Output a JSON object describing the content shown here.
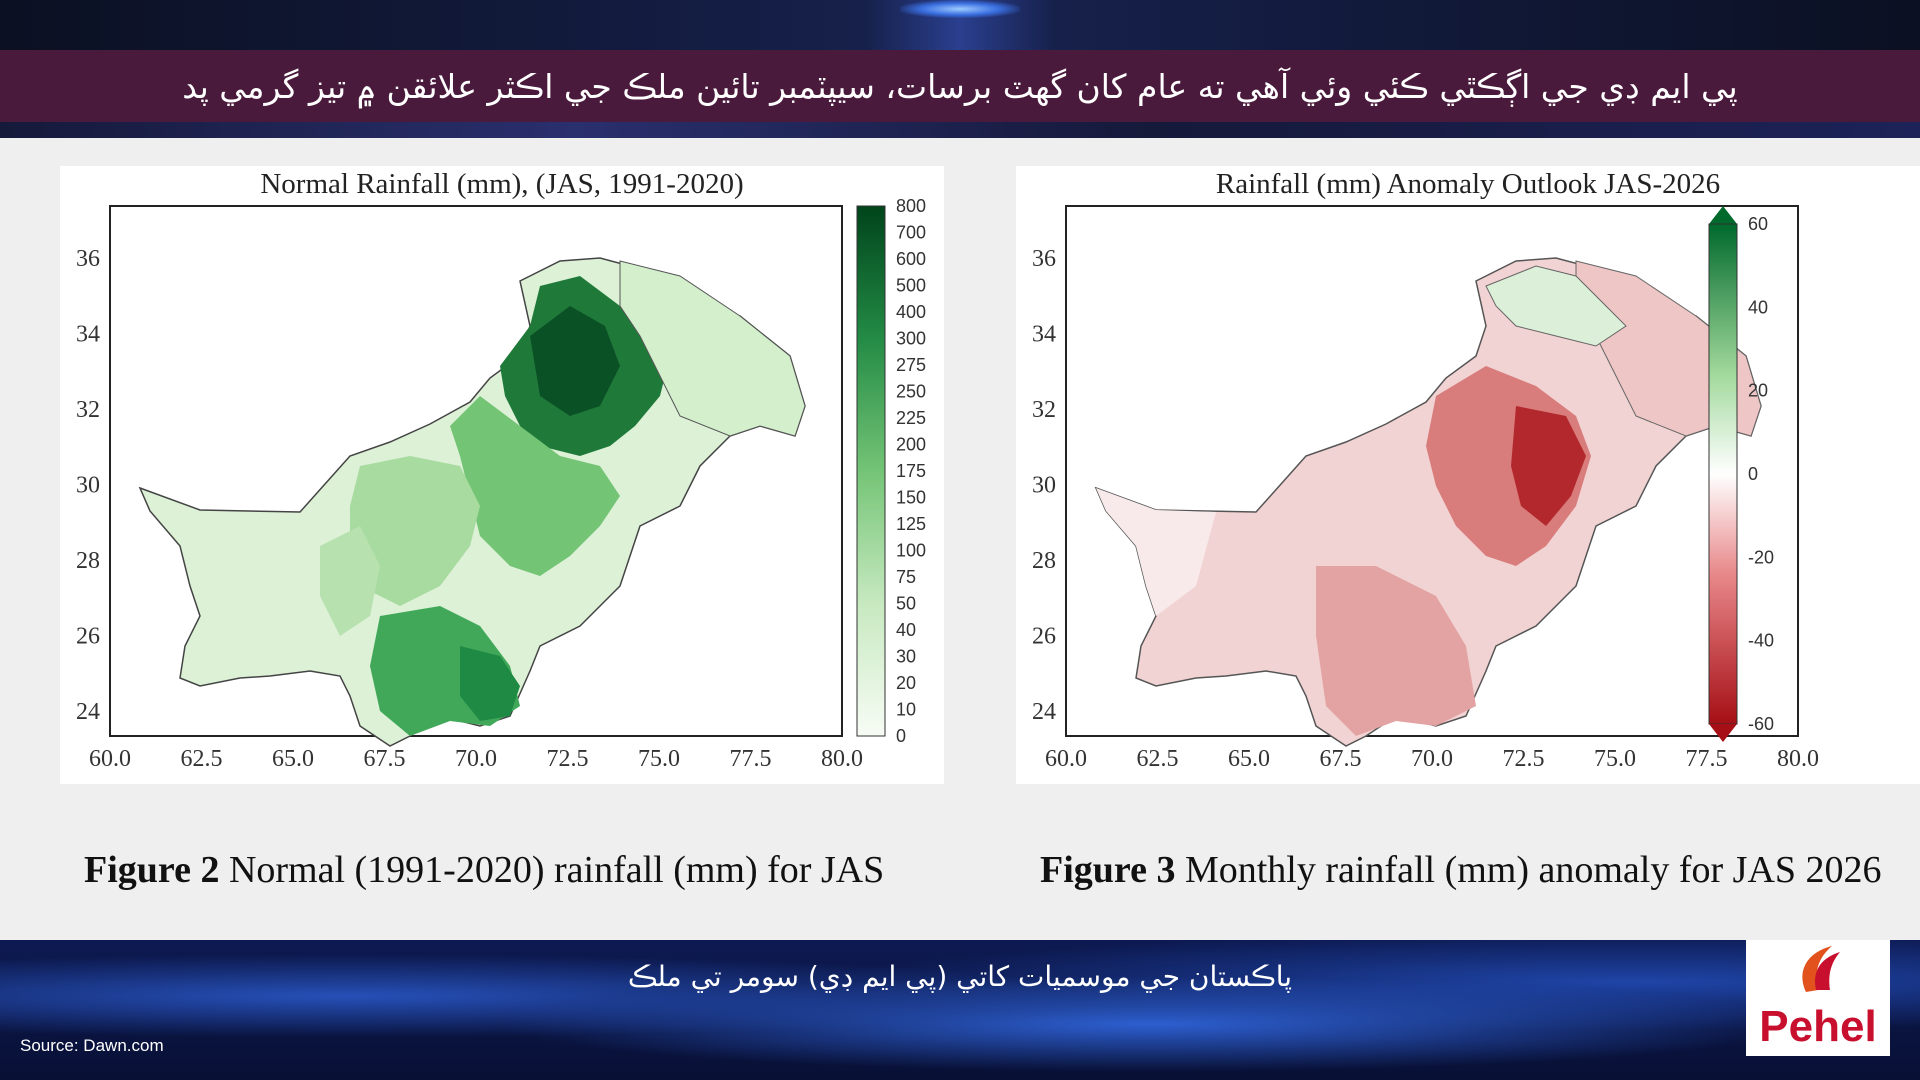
{
  "headline": "پي ايم ڊي جي اڳڪٿي ڪئي وئي آهي ته عام کان گهٽ برسات، سيپٽمبر تائين ملڪ جي اڪثر علائقن ۾ تيز گرمي پد",
  "subtitle": "پاڪستان جي موسميات کاتي (پي ايم ڊي) سومر تي ملڪ",
  "source": "Source: Dawn.com",
  "logo_text": "Pehel",
  "captions": {
    "left_bold": "Figure 2",
    "left_text": " Normal (1991-2020) rainfall (mm) for JAS",
    "right_bold": "Figure 3",
    "right_text": " Monthly rainfall (mm) anomaly for JAS 2026"
  },
  "colors": {
    "headline_bar": "#4a1a3c",
    "green_dark": "#00692c",
    "red_dark": "#a50f15"
  },
  "maps": [
    {
      "title": "Normal Rainfall (mm), (JAS, 1991-2020)",
      "x_ticks": [
        "60.0",
        "62.5",
        "65.0",
        "67.5",
        "70.0",
        "72.5",
        "75.0",
        "77.5",
        "80.0"
      ],
      "y_ticks": [
        "36",
        "34",
        "32",
        "30",
        "28",
        "26",
        "24"
      ],
      "colorbar": [
        "800",
        "700",
        "600",
        "500",
        "400",
        "300",
        "275",
        "250",
        "225",
        "200",
        "175",
        "150",
        "125",
        "100",
        "75",
        "50",
        "40",
        "30",
        "20",
        "10",
        "0"
      ],
      "palette": "greens"
    },
    {
      "title": "Rainfall (mm) Anomaly Outlook  JAS-2026",
      "x_ticks": [
        "60.0",
        "62.5",
        "65.0",
        "67.5",
        "70.0",
        "72.5",
        "75.0",
        "77.5",
        "80.0"
      ],
      "y_ticks": [
        "36",
        "34",
        "32",
        "30",
        "28",
        "26",
        "24"
      ],
      "colorbar": [
        "60",
        "40",
        "20",
        "0",
        "-20",
        "-40",
        "-60"
      ],
      "palette": "red-green"
    }
  ]
}
